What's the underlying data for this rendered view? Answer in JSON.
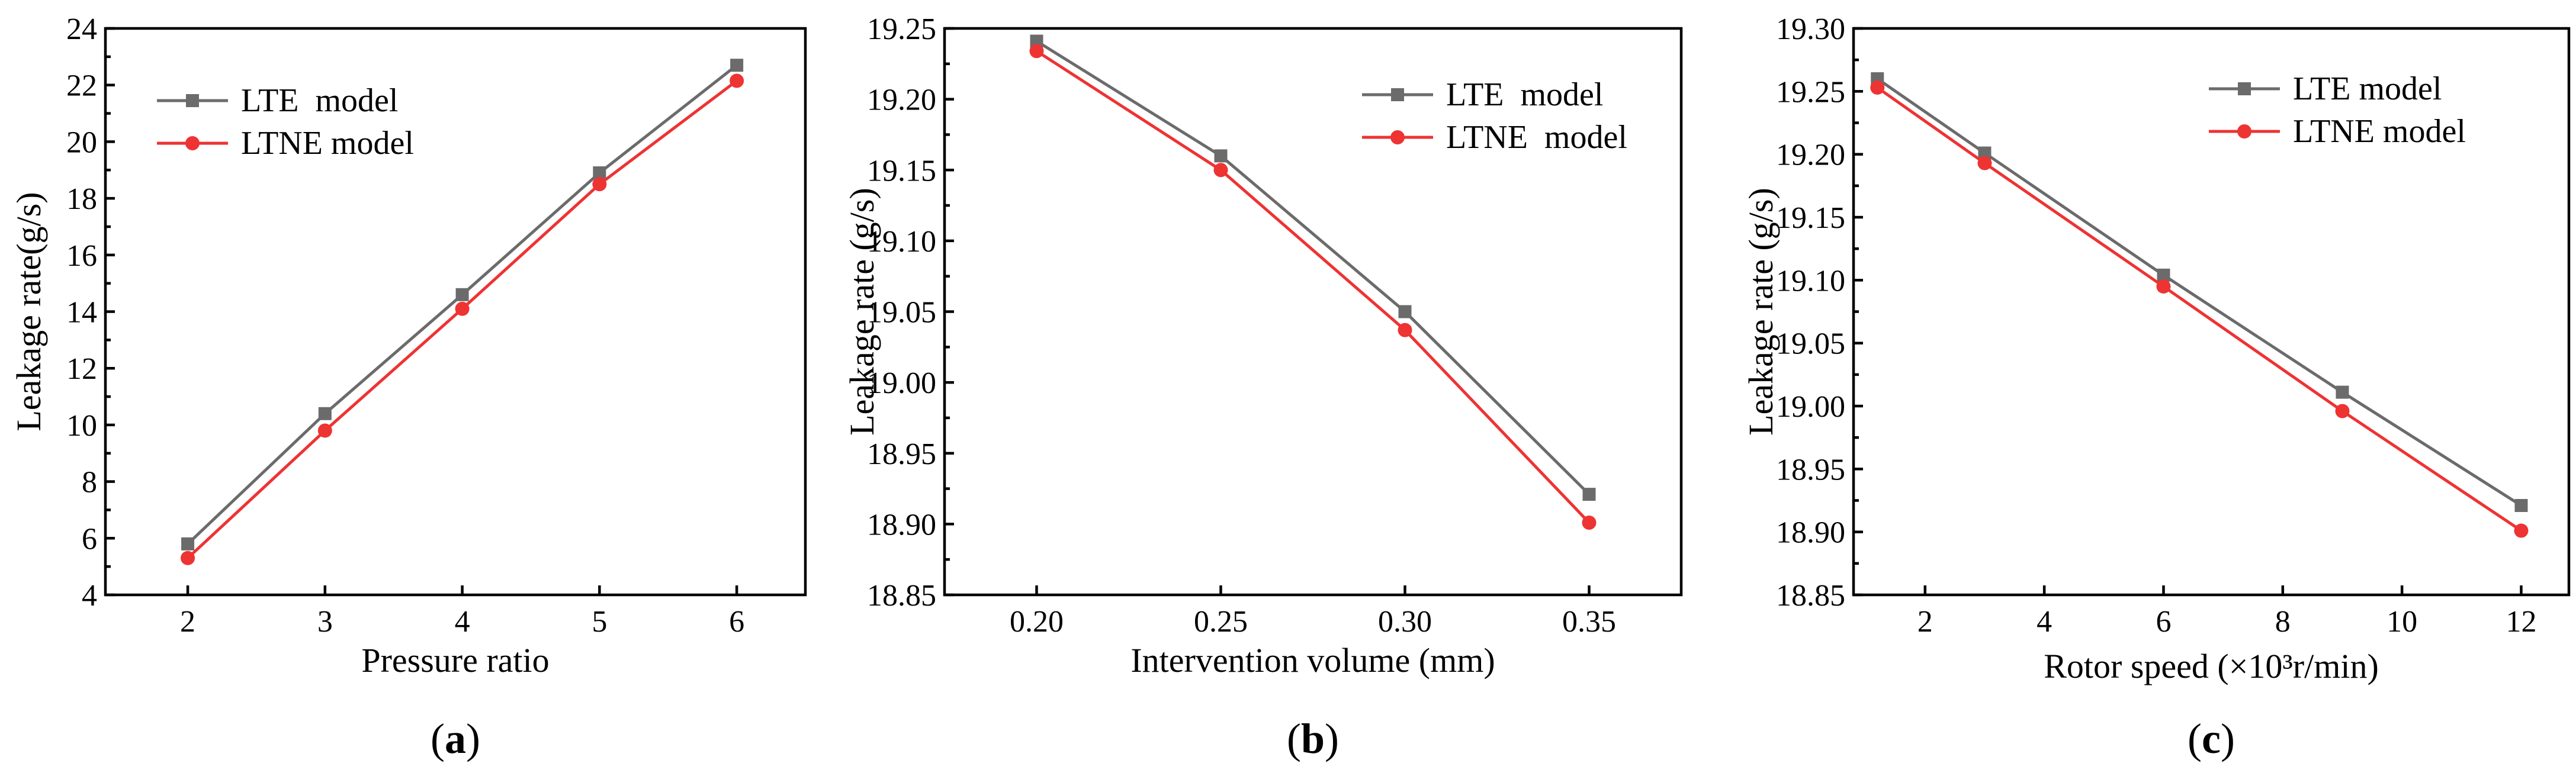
{
  "colors": {
    "lte": "#6b6b6b",
    "ltne": "#ee3333"
  },
  "chart_data": [
    {
      "type": "line",
      "panel_label": "a",
      "xlabel": "Pressure ratio",
      "ylabel": "Leakage rate(g/s)",
      "x": [
        2,
        3,
        4,
        5,
        6
      ],
      "xlim": [
        1.4,
        6.5
      ],
      "xticks": [
        2,
        3,
        4,
        5,
        6
      ],
      "xtick_labels": [
        "2",
        "3",
        "4",
        "5",
        "6"
      ],
      "ylim": [
        4,
        24
      ],
      "yticks": [
        4,
        6,
        8,
        10,
        12,
        14,
        16,
        18,
        20,
        22,
        24
      ],
      "ytick_labels": [
        "4",
        "6",
        "8",
        "10",
        "12",
        "14",
        "16",
        "18",
        "20",
        "22",
        "24"
      ],
      "legend_position": "top-left",
      "series": [
        {
          "name": "LTE  model",
          "marker": "square",
          "values": [
            5.8,
            10.4,
            14.6,
            18.9,
            22.7
          ]
        },
        {
          "name": "LTNE model",
          "marker": "circle",
          "values": [
            5.3,
            9.8,
            14.1,
            18.5,
            22.15
          ]
        }
      ]
    },
    {
      "type": "line",
      "panel_label": "b",
      "xlabel": "Intervention volume (mm)",
      "ylabel": "Leakage rate (g/s)",
      "x": [
        0.2,
        0.25,
        0.3,
        0.35
      ],
      "xlim": [
        0.175,
        0.375
      ],
      "xticks": [
        0.2,
        0.25,
        0.3,
        0.35
      ],
      "xtick_labels": [
        "0.20",
        "0.25",
        "0.30",
        "0.35"
      ],
      "ylim": [
        18.85,
        19.25
      ],
      "yticks": [
        18.85,
        18.9,
        18.95,
        19.0,
        19.05,
        19.1,
        19.15,
        19.2,
        19.25
      ],
      "ytick_labels": [
        "18.85",
        "18.90",
        "18.95",
        "19.00",
        "19.05",
        "19.10",
        "19.15",
        "19.20",
        "19.25"
      ],
      "legend_position": "top-right",
      "series": [
        {
          "name": "LTE  model",
          "marker": "square",
          "values": [
            19.241,
            19.16,
            19.05,
            18.921
          ]
        },
        {
          "name": "LTNE  model",
          "marker": "circle",
          "values": [
            19.234,
            19.15,
            19.037,
            18.901
          ]
        }
      ]
    },
    {
      "type": "line",
      "panel_label": "c",
      "xlabel": "Rotor speed (×10³r/min)",
      "ylabel": "Leakage rate (g/s)",
      "x": [
        1.2,
        3,
        6,
        9,
        12
      ],
      "xlim": [
        0.8,
        12.8
      ],
      "xticks": [
        2,
        4,
        6,
        8,
        10,
        12
      ],
      "xtick_labels": [
        "2",
        "4",
        "6",
        "8",
        "10",
        "12"
      ],
      "ylim": [
        18.85,
        19.3
      ],
      "yticks": [
        18.85,
        18.9,
        18.95,
        19.0,
        19.05,
        19.1,
        19.15,
        19.2,
        19.25,
        19.3
      ],
      "ytick_labels": [
        "18.85",
        "18.90",
        "18.95",
        "19.00",
        "19.05",
        "19.10",
        "19.15",
        "19.20",
        "19.25",
        "19.30"
      ],
      "legend_position": "top-right",
      "series": [
        {
          "name": "LTE model",
          "marker": "square",
          "values": [
            19.26,
            19.201,
            19.104,
            19.011,
            18.921
          ]
        },
        {
          "name": "LTNE model",
          "marker": "circle",
          "values": [
            19.253,
            19.193,
            19.095,
            18.996,
            18.901
          ]
        }
      ]
    }
  ]
}
